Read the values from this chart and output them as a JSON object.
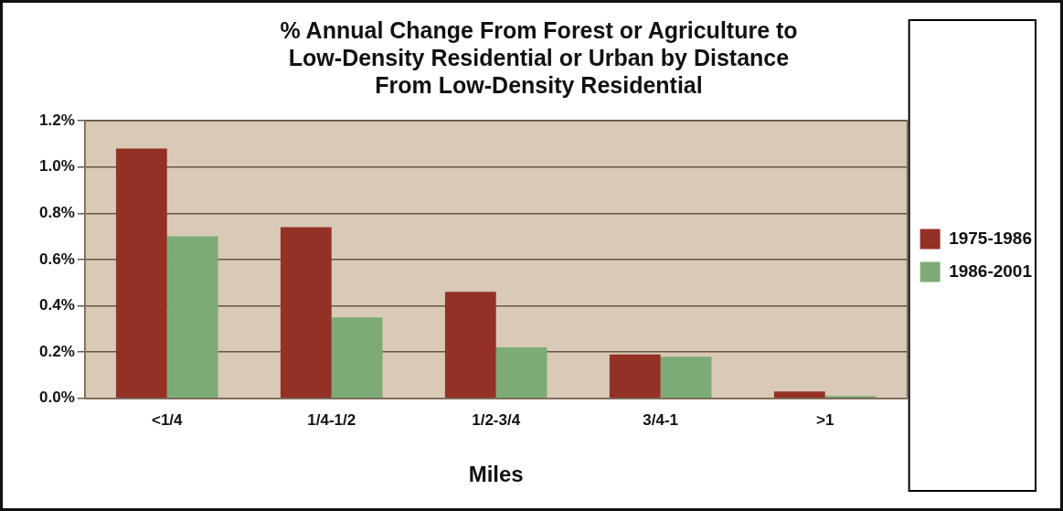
{
  "chart_data": {
    "type": "bar",
    "title": "% Annual Change From Forest or Agriculture to\nLow-Density Residential or Urban by Distance\nFrom Low-Density Residential",
    "xlabel": "Miles",
    "categories": [
      "<1/4",
      "1/4-1/2",
      "1/2-3/4",
      "3/4-1",
      ">1"
    ],
    "series": [
      {
        "name": "1975-1986",
        "color": "#943127",
        "values": [
          1.08,
          0.74,
          0.46,
          0.19,
          0.03
        ]
      },
      {
        "name": "1986-2001",
        "color": "#7cab77",
        "values": [
          0.7,
          0.35,
          0.22,
          0.18,
          0.01
        ]
      }
    ],
    "ylim": [
      0,
      1.2
    ],
    "yticks": [
      {
        "value": 0,
        "label": "0.0%"
      },
      {
        "value": 0.2,
        "label": "0.2%"
      },
      {
        "value": 0.4,
        "label": "0.4%"
      },
      {
        "value": 0.6,
        "label": "0.6%"
      },
      {
        "value": 0.8,
        "label": "0.8%"
      },
      {
        "value": 1.0,
        "label": "1.0%"
      },
      {
        "value": 1.2,
        "label": "1.2%"
      }
    ],
    "grid": "y",
    "legend": "right"
  }
}
